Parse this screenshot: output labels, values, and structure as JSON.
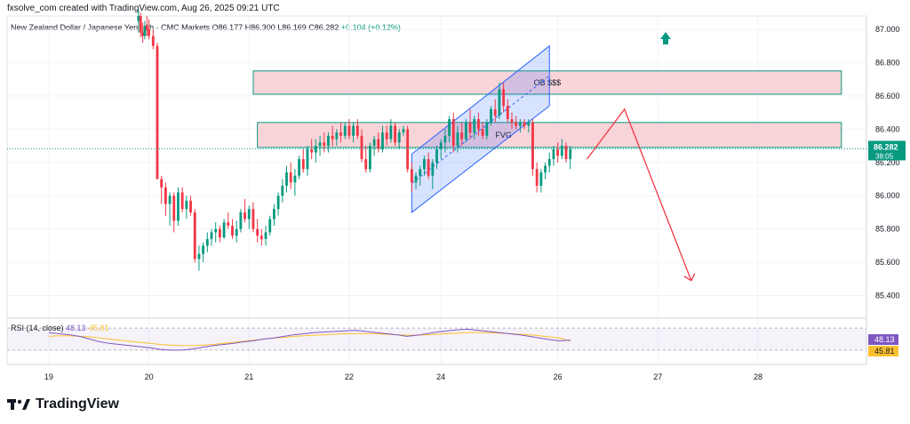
{
  "credit": "fxsolve_com created with TradingView.com, Aug 26, 2025 09:21 UTC",
  "legend": {
    "symbol": "New Zealand Dollar / Japanese Yen · 1h · CMC Markets",
    "open": "O86.177",
    "high": "H86.300",
    "low": "L86.169",
    "close": "C86.282",
    "change": "+0.104 (+0.12%)"
  },
  "brand": "TradingView",
  "colors": {
    "up": "#089981",
    "down": "#f23645",
    "zone_fill": "#f7c6cc",
    "zone_border": "#089981",
    "channel": "#2962ff",
    "projection": "#f23645",
    "rsi_line": "#7e57c2",
    "rsi_ma": "#fbc02d"
  },
  "chart_data": {
    "type": "candlestick",
    "symbol": "NZD/JPY",
    "timeframe": "1h",
    "ylim": [
      85.28,
      87.08
    ],
    "y_ticks": [
      "87.000",
      "86.800",
      "86.600",
      "86.400",
      "86.200",
      "86.000",
      "85.800",
      "85.600",
      "85.400"
    ],
    "x_ticks": [
      "19",
      "20",
      "21",
      "22",
      "24",
      "26",
      "27",
      "28"
    ],
    "x_tick_times": [
      0,
      24,
      48,
      72,
      94,
      122,
      146,
      170
    ],
    "last_price": "86.282",
    "countdown": "38:05",
    "candles": [
      [
        21.5,
        87.05,
        87.12,
        86.98,
        87.08
      ],
      [
        22,
        87.08,
        87.1,
        86.95,
        86.98
      ],
      [
        22.5,
        86.98,
        87.04,
        86.92,
        86.96
      ],
      [
        23,
        86.96,
        87.05,
        86.94,
        87.02
      ],
      [
        23.5,
        87.02,
        87.08,
        86.96,
        87.0
      ],
      [
        24,
        87.0,
        87.06,
        86.94,
        86.96
      ],
      [
        25,
        86.96,
        87.0,
        86.88,
        86.9
      ],
      [
        26,
        86.9,
        86.92,
        86.1,
        86.1
      ],
      [
        27,
        86.1,
        86.12,
        85.95,
        86.05
      ],
      [
        28,
        86.05,
        86.08,
        85.88,
        85.95
      ],
      [
        29,
        85.95,
        86.02,
        85.82,
        86.0
      ],
      [
        30,
        86.0,
        86.02,
        85.78,
        85.85
      ],
      [
        31,
        85.85,
        86.05,
        85.82,
        86.02
      ],
      [
        32,
        86.02,
        86.05,
        85.9,
        85.92
      ],
      [
        33,
        85.92,
        86.0,
        85.86,
        85.97
      ],
      [
        34,
        85.97,
        86.0,
        85.88,
        85.9
      ],
      [
        35,
        85.9,
        85.92,
        85.6,
        85.62
      ],
      [
        36,
        85.62,
        85.7,
        85.55,
        85.65
      ],
      [
        37,
        85.65,
        85.72,
        85.6,
        85.7
      ],
      [
        38,
        85.7,
        85.78,
        85.66,
        85.74
      ],
      [
        39,
        85.74,
        85.8,
        85.7,
        85.78
      ],
      [
        40,
        85.78,
        85.84,
        85.72,
        85.8
      ],
      [
        41,
        85.8,
        85.82,
        85.72,
        85.75
      ],
      [
        42,
        85.75,
        85.86,
        85.74,
        85.84
      ],
      [
        43,
        85.84,
        85.9,
        85.8,
        85.82
      ],
      [
        44,
        85.82,
        85.86,
        85.74,
        85.76
      ],
      [
        45,
        85.76,
        85.85,
        85.72,
        85.8
      ],
      [
        46,
        85.8,
        85.92,
        85.78,
        85.9
      ],
      [
        47,
        85.9,
        85.98,
        85.84,
        85.86
      ],
      [
        48,
        85.86,
        85.94,
        85.8,
        85.92
      ],
      [
        49,
        85.92,
        85.96,
        85.78,
        85.8
      ],
      [
        50,
        85.8,
        85.86,
        85.72,
        85.76
      ],
      [
        51,
        85.76,
        85.8,
        85.7,
        85.74
      ],
      [
        52,
        85.74,
        85.82,
        85.7,
        85.78
      ],
      [
        53,
        85.78,
        85.88,
        85.76,
        85.86
      ],
      [
        54,
        85.86,
        85.95,
        85.82,
        85.92
      ],
      [
        55,
        85.92,
        86.02,
        85.88,
        86.0
      ],
      [
        56,
        86.0,
        86.1,
        85.96,
        86.06
      ],
      [
        57,
        86.06,
        86.18,
        86.02,
        86.14
      ],
      [
        58,
        86.14,
        86.2,
        86.04,
        86.08
      ],
      [
        59,
        86.08,
        86.16,
        86.0,
        86.12
      ],
      [
        60,
        86.12,
        86.24,
        86.1,
        86.22
      ],
      [
        61,
        86.22,
        86.28,
        86.14,
        86.16
      ],
      [
        62,
        86.16,
        86.3,
        86.12,
        86.28
      ],
      [
        63,
        86.28,
        86.34,
        86.22,
        86.26
      ],
      [
        64,
        86.26,
        86.34,
        86.2,
        86.3
      ],
      [
        65,
        86.3,
        86.36,
        86.24,
        86.32
      ],
      [
        66,
        86.32,
        86.38,
        86.26,
        86.3
      ],
      [
        67,
        86.3,
        86.38,
        86.26,
        86.36
      ],
      [
        68,
        86.36,
        86.42,
        86.3,
        86.34
      ],
      [
        69,
        86.34,
        86.4,
        86.3,
        86.38
      ],
      [
        70,
        86.38,
        86.44,
        86.32,
        86.36
      ],
      [
        71,
        86.36,
        86.44,
        86.34,
        86.42
      ],
      [
        72,
        86.42,
        86.46,
        86.34,
        86.36
      ],
      [
        73,
        86.36,
        86.44,
        86.32,
        86.42
      ],
      [
        74,
        86.42,
        86.46,
        86.34,
        86.36
      ],
      [
        75,
        86.36,
        86.4,
        86.2,
        86.22
      ],
      [
        76,
        86.22,
        86.3,
        86.14,
        86.16
      ],
      [
        77,
        86.16,
        86.32,
        86.14,
        86.3
      ],
      [
        78,
        86.3,
        86.36,
        86.24,
        86.34
      ],
      [
        79,
        86.34,
        86.38,
        86.26,
        86.28
      ],
      [
        80,
        86.28,
        86.42,
        86.26,
        86.38
      ],
      [
        81,
        86.38,
        86.42,
        86.3,
        86.34
      ],
      [
        82,
        86.34,
        86.46,
        86.32,
        86.42
      ],
      [
        83,
        86.42,
        86.44,
        86.3,
        86.32
      ],
      [
        84,
        86.32,
        86.4,
        86.28,
        86.38
      ],
      [
        85,
        86.38,
        86.42,
        86.36,
        86.4
      ],
      [
        86,
        86.4,
        86.42,
        86.14,
        86.16
      ],
      [
        87,
        86.16,
        86.2,
        86.02,
        86.08
      ],
      [
        88,
        86.08,
        86.14,
        86.04,
        86.12
      ],
      [
        89,
        86.12,
        86.18,
        86.06,
        86.16
      ],
      [
        90,
        86.16,
        86.24,
        86.12,
        86.22
      ],
      [
        91,
        86.22,
        86.26,
        86.1,
        86.12
      ],
      [
        92,
        86.12,
        86.22,
        86.04,
        86.2
      ],
      [
        93,
        86.2,
        86.3,
        86.16,
        86.28
      ],
      [
        94,
        86.28,
        86.34,
        86.22,
        86.32
      ],
      [
        95,
        86.32,
        86.4,
        86.26,
        86.36
      ],
      [
        96,
        86.36,
        86.48,
        86.32,
        86.46
      ],
      [
        97,
        86.46,
        86.5,
        86.26,
        86.3
      ],
      [
        98,
        86.3,
        86.42,
        86.26,
        86.38
      ],
      [
        99,
        86.38,
        86.44,
        86.3,
        86.34
      ],
      [
        100,
        86.34,
        86.46,
        86.32,
        86.44
      ],
      [
        101,
        86.44,
        86.52,
        86.34,
        86.38
      ],
      [
        102,
        86.38,
        86.48,
        86.34,
        86.46
      ],
      [
        103,
        86.46,
        86.5,
        86.36,
        86.4
      ],
      [
        104,
        86.4,
        86.44,
        86.34,
        86.36
      ],
      [
        105,
        86.36,
        86.46,
        86.34,
        86.44
      ],
      [
        106,
        86.44,
        86.54,
        86.42,
        86.52
      ],
      [
        107,
        86.52,
        86.58,
        86.44,
        86.48
      ],
      [
        108,
        86.48,
        86.68,
        86.46,
        86.64
      ],
      [
        109,
        86.64,
        86.68,
        86.5,
        86.54
      ],
      [
        110,
        86.54,
        86.58,
        86.44,
        86.46
      ],
      [
        111,
        86.46,
        86.5,
        86.4,
        86.44
      ],
      [
        112,
        86.44,
        86.48,
        86.4,
        86.42
      ],
      [
        113,
        86.42,
        86.46,
        86.38,
        86.44
      ],
      [
        114,
        86.44,
        86.46,
        86.4,
        86.42
      ],
      [
        115,
        86.42,
        86.46,
        86.38,
        86.44
      ],
      [
        116,
        86.44,
        86.46,
        86.12,
        86.16
      ],
      [
        117,
        86.16,
        86.2,
        86.02,
        86.06
      ],
      [
        118,
        86.06,
        86.16,
        86.02,
        86.14
      ],
      [
        119,
        86.14,
        86.2,
        86.1,
        86.18
      ],
      [
        120,
        86.18,
        86.26,
        86.14,
        86.22
      ],
      [
        121,
        86.22,
        86.3,
        86.18,
        86.28
      ],
      [
        122,
        86.28,
        86.32,
        86.2,
        86.24
      ],
      [
        123,
        86.24,
        86.34,
        86.22,
        86.3
      ],
      [
        124,
        86.3,
        86.32,
        86.2,
        86.22
      ],
      [
        125,
        86.22,
        86.3,
        86.16,
        86.282
      ]
    ],
    "annotations": [
      {
        "label": "OB $$$",
        "kind": "order-block",
        "y_top": 86.75,
        "y_bottom": 86.61,
        "t_start": 49,
        "t_end": 190
      },
      {
        "label": "FVG",
        "kind": "fair-value-gap",
        "y_top": 86.44,
        "y_bottom": 86.29,
        "t_start": 50,
        "t_end": 190
      },
      {
        "kind": "ascending-channel",
        "lower": [
          [
            87,
            85.9
          ],
          [
            120,
            86.54
          ]
        ],
        "upper": [
          [
            87,
            86.25
          ],
          [
            120,
            86.9
          ]
        ]
      },
      {
        "kind": "projection",
        "points": [
          [
            129,
            86.22
          ],
          [
            138,
            86.52
          ],
          [
            154,
            85.49
          ]
        ]
      }
    ],
    "rsi": {
      "label": "RSI (14, close)",
      "rsi_value": "48.13",
      "ma_value": "45.81",
      "ylim": [
        20,
        80
      ],
      "line": [
        62,
        60,
        58,
        55,
        50,
        45,
        42,
        40,
        38,
        36,
        34,
        31,
        30,
        30,
        32,
        35,
        38,
        40,
        42,
        45,
        47,
        50,
        52,
        55,
        58,
        60,
        62,
        63,
        64,
        65,
        66,
        64,
        62,
        60,
        58,
        55,
        57,
        60,
        63,
        65,
        67,
        68,
        66,
        64,
        62,
        60,
        58,
        55,
        52,
        49,
        47,
        48.13
      ],
      "ma": [
        55,
        56,
        56,
        55,
        54,
        52,
        50,
        48,
        46,
        44,
        42,
        40,
        39,
        38,
        38,
        39,
        40,
        42,
        44,
        46,
        48,
        50,
        52,
        53,
        55,
        56,
        57,
        58,
        59,
        60,
        60,
        60,
        60,
        59,
        58,
        57,
        57,
        58,
        59,
        60,
        61,
        62,
        62,
        62,
        61,
        60,
        59,
        58,
        56,
        54,
        52,
        45.81
      ]
    }
  }
}
